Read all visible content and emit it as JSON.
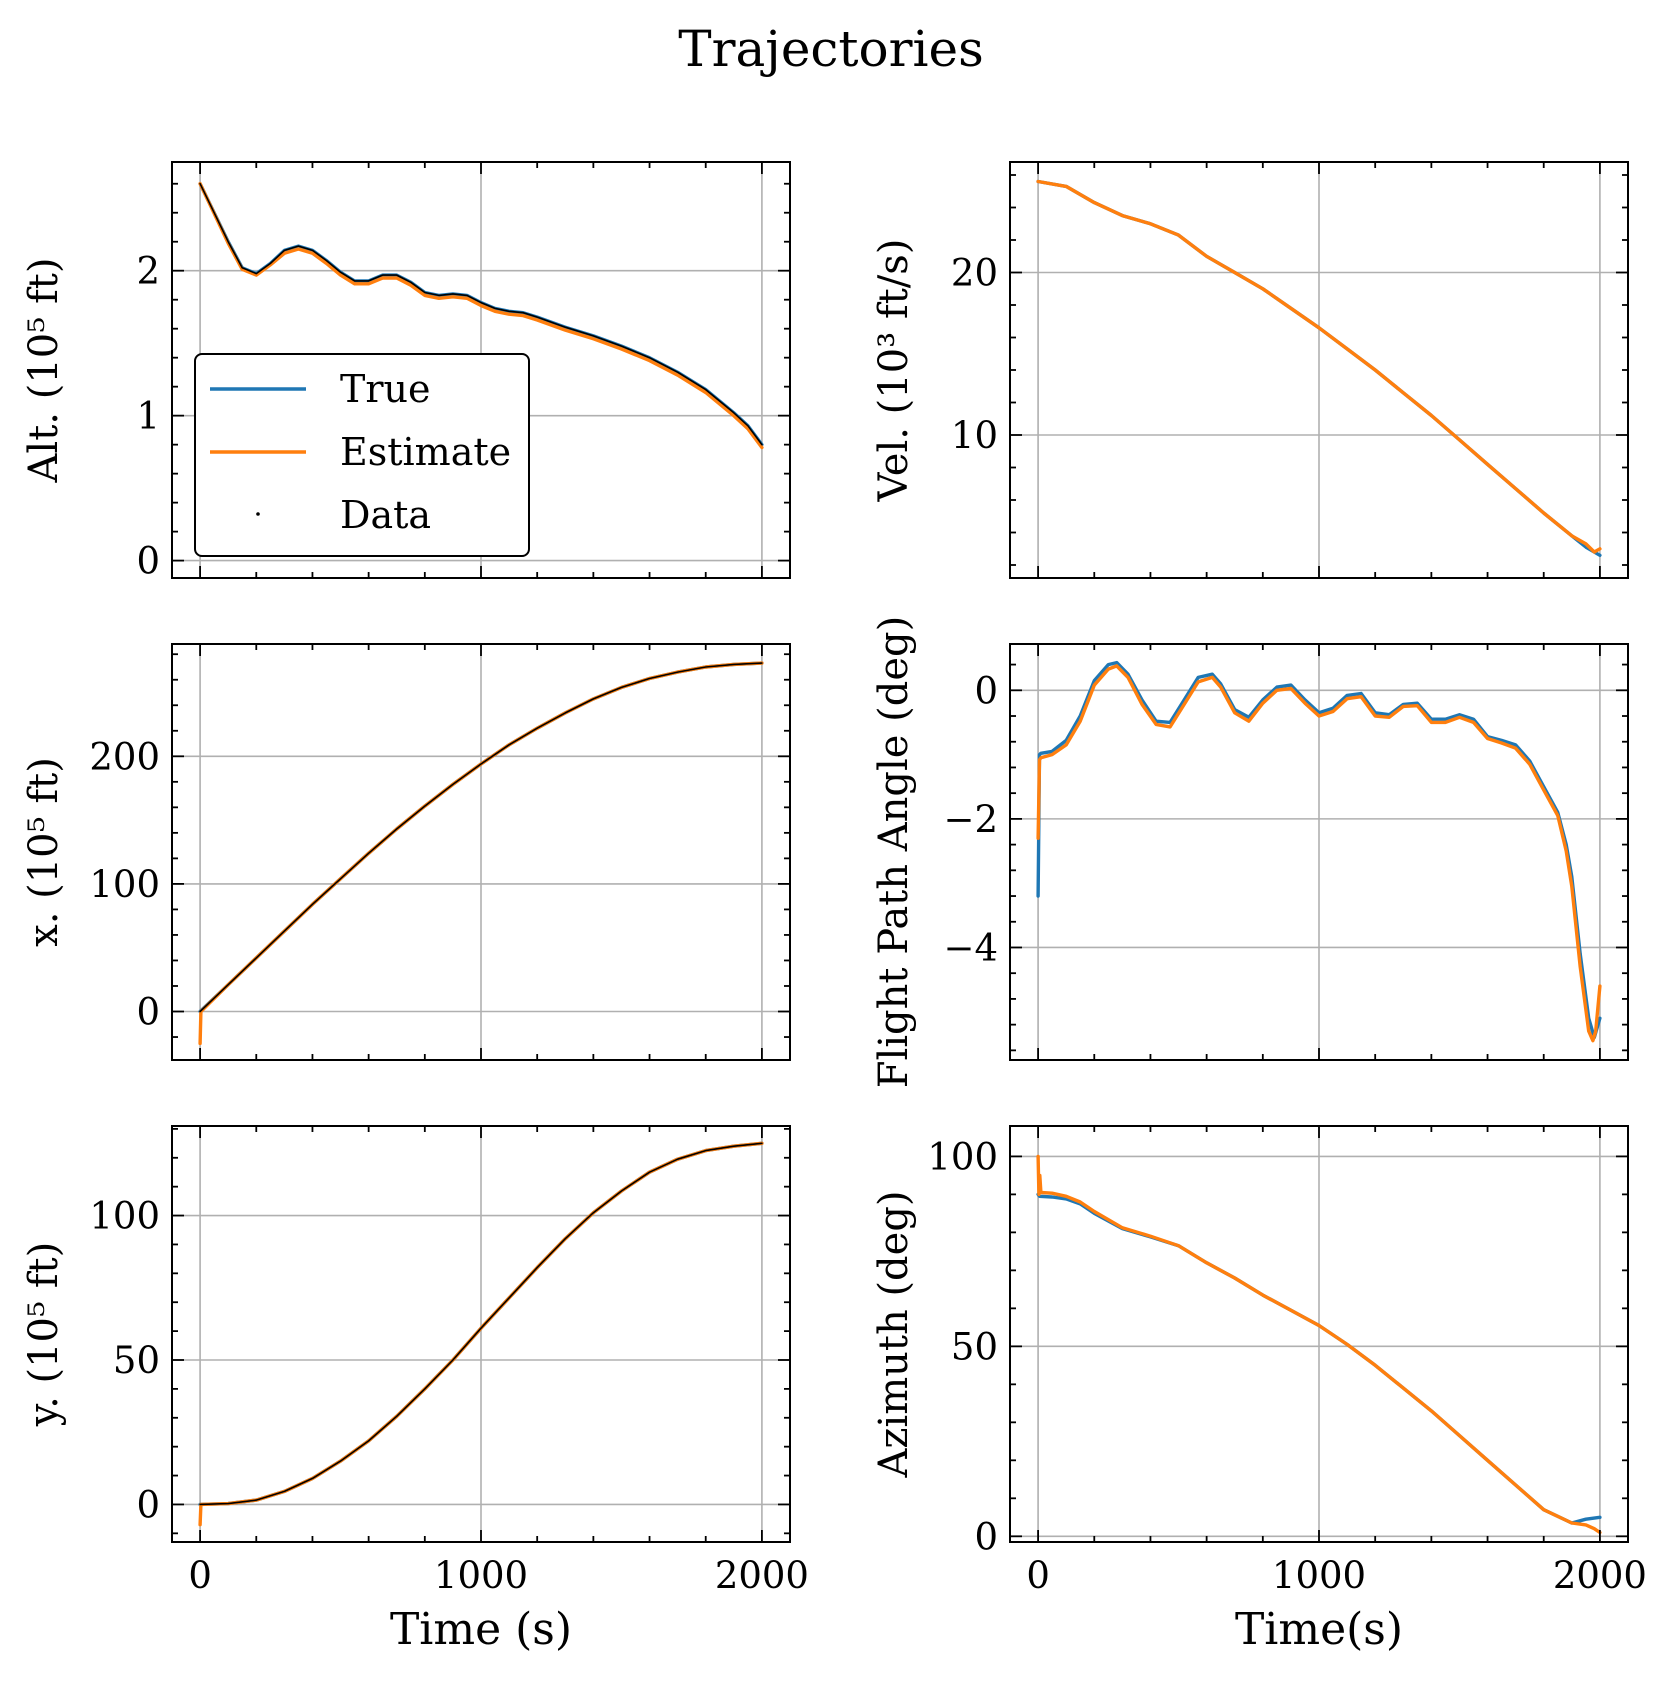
{
  "title": "Trajectories",
  "colors": {
    "true": "#1f77b4",
    "estimate": "#ff7f0e",
    "data": "#000000"
  },
  "legend": {
    "location": "lower-left",
    "entries": [
      "True",
      "Estimate",
      "Data"
    ]
  },
  "chart_data": [
    {
      "type": "line",
      "panel": "alt",
      "xlabel": "",
      "ylabel": "Alt. (10⁵ ft)",
      "xlim": [
        -100,
        2100
      ],
      "ylim": [
        -0.12,
        2.75
      ],
      "xticks": [
        0,
        1000,
        2000
      ],
      "xtick_labels": [
        "",
        "",
        ""
      ],
      "yticks": [
        0,
        1,
        2
      ],
      "ytick_labels": [
        "0",
        "1",
        "2"
      ],
      "grid": true,
      "series": [
        {
          "name": "True",
          "x": [
            0,
            100,
            150,
            200,
            250,
            300,
            350,
            400,
            450,
            500,
            550,
            600,
            650,
            700,
            750,
            800,
            850,
            900,
            950,
            1000,
            1050,
            1100,
            1150,
            1200,
            1300,
            1400,
            1500,
            1600,
            1700,
            1800,
            1900,
            1950,
            2000
          ],
          "y": [
            2.6,
            2.2,
            2.02,
            1.98,
            2.05,
            2.14,
            2.17,
            2.14,
            2.07,
            1.99,
            1.93,
            1.93,
            1.97,
            1.97,
            1.92,
            1.85,
            1.83,
            1.84,
            1.83,
            1.78,
            1.74,
            1.72,
            1.71,
            1.68,
            1.61,
            1.55,
            1.48,
            1.4,
            1.3,
            1.18,
            1.02,
            0.93,
            0.8
          ]
        },
        {
          "name": "Estimate",
          "x": [
            0,
            100,
            150,
            200,
            250,
            300,
            350,
            400,
            450,
            500,
            550,
            600,
            650,
            700,
            750,
            800,
            850,
            900,
            950,
            1000,
            1050,
            1100,
            1150,
            1200,
            1300,
            1400,
            1500,
            1600,
            1700,
            1800,
            1900,
            1950,
            2000
          ],
          "y": [
            2.6,
            2.19,
            2.01,
            1.97,
            2.04,
            2.12,
            2.15,
            2.12,
            2.05,
            1.97,
            1.91,
            1.91,
            1.95,
            1.95,
            1.9,
            1.83,
            1.81,
            1.82,
            1.81,
            1.76,
            1.72,
            1.7,
            1.69,
            1.66,
            1.59,
            1.53,
            1.46,
            1.38,
            1.28,
            1.16,
            1.0,
            0.91,
            0.78
          ]
        },
        {
          "name": "Data",
          "x": [
            0,
            100,
            150,
            200,
            250,
            300,
            350,
            400,
            450,
            500,
            550,
            600,
            650,
            700,
            750,
            800,
            850,
            900,
            950,
            1000,
            1050,
            1100,
            1150,
            1200,
            1300,
            1400,
            1500,
            1600,
            1700,
            1800,
            1900,
            1950,
            2000
          ],
          "y": [
            2.6,
            2.2,
            2.02,
            1.98,
            2.05,
            2.14,
            2.17,
            2.14,
            2.07,
            1.99,
            1.93,
            1.93,
            1.97,
            1.97,
            1.92,
            1.85,
            1.83,
            1.84,
            1.83,
            1.78,
            1.74,
            1.72,
            1.71,
            1.68,
            1.61,
            1.55,
            1.48,
            1.4,
            1.3,
            1.18,
            1.02,
            0.93,
            0.8
          ]
        }
      ]
    },
    {
      "type": "line",
      "panel": "vel",
      "xlabel": "",
      "ylabel": "Vel. (10³ ft/s)",
      "xlim": [
        -100,
        2100
      ],
      "ylim": [
        1.2,
        26.8
      ],
      "xticks": [
        0,
        1000,
        2000
      ],
      "xtick_labels": [
        "",
        "",
        ""
      ],
      "yticks": [
        10,
        20
      ],
      "ytick_labels": [
        "10",
        "20"
      ],
      "grid": true,
      "series": [
        {
          "name": "True",
          "x": [
            0,
            100,
            200,
            300,
            400,
            500,
            600,
            700,
            800,
            900,
            1000,
            1100,
            1200,
            1300,
            1400,
            1500,
            1600,
            1700,
            1800,
            1900,
            1950,
            2000
          ],
          "y": [
            25.6,
            25.3,
            24.3,
            23.5,
            23.0,
            22.3,
            21.0,
            20.0,
            19.0,
            17.8,
            16.6,
            15.3,
            14.0,
            12.6,
            11.2,
            9.7,
            8.2,
            6.7,
            5.2,
            3.8,
            3.1,
            2.6
          ]
        },
        {
          "name": "Estimate",
          "x": [
            0,
            100,
            200,
            300,
            400,
            500,
            600,
            700,
            800,
            900,
            1000,
            1100,
            1200,
            1300,
            1400,
            1500,
            1600,
            1700,
            1800,
            1900,
            1950,
            1980,
            2000
          ],
          "y": [
            25.6,
            25.3,
            24.3,
            23.5,
            23.0,
            22.3,
            21.0,
            20.0,
            19.0,
            17.8,
            16.6,
            15.3,
            14.0,
            12.6,
            11.2,
            9.7,
            8.2,
            6.7,
            5.2,
            3.8,
            3.3,
            2.8,
            3.0
          ]
        }
      ]
    },
    {
      "type": "line",
      "panel": "x",
      "xlabel": "",
      "ylabel": "x. (10⁵ ft)",
      "xlim": [
        -100,
        2100
      ],
      "ylim": [
        -38,
        288
      ],
      "xticks": [
        0,
        1000,
        2000
      ],
      "xtick_labels": [
        "",
        "",
        ""
      ],
      "yticks": [
        0,
        100,
        200
      ],
      "ytick_labels": [
        "0",
        "100",
        "200"
      ],
      "grid": true,
      "series": [
        {
          "name": "True",
          "x": [
            0,
            100,
            200,
            300,
            400,
            500,
            600,
            700,
            800,
            900,
            1000,
            1100,
            1200,
            1300,
            1400,
            1500,
            1600,
            1700,
            1800,
            1900,
            2000
          ],
          "y": [
            0,
            21,
            42,
            63,
            84,
            104,
            124,
            143,
            161,
            178,
            194,
            209,
            222,
            234,
            245,
            254,
            261,
            266,
            270,
            272,
            273
          ]
        },
        {
          "name": "Estimate",
          "x": [
            0,
            3,
            100,
            200,
            300,
            400,
            500,
            600,
            700,
            800,
            900,
            1000,
            1100,
            1200,
            1300,
            1400,
            1500,
            1600,
            1700,
            1800,
            1900,
            2000
          ],
          "y": [
            -25,
            0,
            21,
            42,
            63,
            84,
            104,
            124,
            143,
            161,
            178,
            194,
            209,
            222,
            234,
            245,
            254,
            261,
            266,
            270,
            272,
            273
          ]
        },
        {
          "name": "Data",
          "x": [
            0,
            100,
            200,
            300,
            400,
            500,
            600,
            700,
            800,
            900,
            1000,
            1100,
            1200,
            1300,
            1400,
            1500,
            1600,
            1700,
            1800,
            1900,
            2000
          ],
          "y": [
            0,
            21,
            42,
            63,
            84,
            104,
            124,
            143,
            161,
            178,
            194,
            209,
            222,
            234,
            245,
            254,
            261,
            266,
            270,
            272,
            273
          ]
        }
      ]
    },
    {
      "type": "line",
      "panel": "fpa",
      "xlabel": "",
      "ylabel": "Flight Path Angle (deg)",
      "xlim": [
        -100,
        2100
      ],
      "ylim": [
        -5.75,
        0.72
      ],
      "xticks": [
        0,
        1000,
        2000
      ],
      "xtick_labels": [
        "",
        "",
        ""
      ],
      "yticks": [
        -4,
        -2,
        0
      ],
      "ytick_labels": [
        "−4",
        "−2",
        "0"
      ],
      "grid": true,
      "series": [
        {
          "name": "True",
          "x": [
            0,
            5,
            10,
            50,
            100,
            150,
            200,
            250,
            280,
            320,
            370,
            420,
            470,
            520,
            570,
            620,
            650,
            700,
            750,
            800,
            850,
            900,
            950,
            1000,
            1050,
            1100,
            1150,
            1200,
            1250,
            1300,
            1350,
            1400,
            1450,
            1500,
            1550,
            1600,
            1650,
            1700,
            1750,
            1800,
            1850,
            1880,
            1900,
            1930,
            1960,
            1980,
            2000
          ],
          "y": [
            -3.2,
            -1.0,
            -0.98,
            -0.95,
            -0.78,
            -0.4,
            0.15,
            0.4,
            0.43,
            0.25,
            -0.15,
            -0.48,
            -0.5,
            -0.15,
            0.2,
            0.25,
            0.1,
            -0.3,
            -0.42,
            -0.15,
            0.05,
            0.08,
            -0.15,
            -0.35,
            -0.28,
            -0.08,
            -0.05,
            -0.35,
            -0.38,
            -0.22,
            -0.2,
            -0.45,
            -0.45,
            -0.38,
            -0.45,
            -0.72,
            -0.78,
            -0.85,
            -1.1,
            -1.5,
            -1.9,
            -2.4,
            -2.9,
            -4.1,
            -5.1,
            -5.4,
            -5.1
          ]
        },
        {
          "name": "Estimate",
          "x": [
            0,
            5,
            10,
            50,
            100,
            150,
            200,
            250,
            280,
            320,
            370,
            420,
            470,
            520,
            570,
            620,
            650,
            700,
            750,
            800,
            850,
            900,
            950,
            1000,
            1050,
            1100,
            1150,
            1200,
            1250,
            1300,
            1350,
            1400,
            1450,
            1500,
            1550,
            1600,
            1650,
            1700,
            1750,
            1800,
            1850,
            1880,
            1900,
            1930,
            1960,
            1975,
            1985,
            2000
          ],
          "y": [
            -2.3,
            -1.08,
            -1.05,
            -1.0,
            -0.85,
            -0.48,
            0.08,
            0.33,
            0.38,
            0.2,
            -0.22,
            -0.53,
            -0.57,
            -0.22,
            0.13,
            0.2,
            0.05,
            -0.35,
            -0.48,
            -0.2,
            0.0,
            0.03,
            -0.2,
            -0.4,
            -0.33,
            -0.13,
            -0.1,
            -0.4,
            -0.42,
            -0.25,
            -0.24,
            -0.5,
            -0.5,
            -0.42,
            -0.5,
            -0.75,
            -0.82,
            -0.9,
            -1.15,
            -1.55,
            -1.95,
            -2.5,
            -3.05,
            -4.3,
            -5.3,
            -5.45,
            -5.3,
            -4.6
          ]
        }
      ]
    },
    {
      "type": "line",
      "panel": "y",
      "xlabel": "Time (s)",
      "ylabel": "y. (10⁵ ft)",
      "xlim": [
        -100,
        2100
      ],
      "ylim": [
        -13,
        131
      ],
      "xticks": [
        0,
        1000,
        2000
      ],
      "xtick_labels": [
        "0",
        "1000",
        "2000"
      ],
      "yticks": [
        0,
        50,
        100
      ],
      "ytick_labels": [
        "0",
        "50",
        "100"
      ],
      "grid": true,
      "series": [
        {
          "name": "True",
          "x": [
            0,
            100,
            200,
            300,
            400,
            500,
            600,
            700,
            800,
            900,
            1000,
            1100,
            1200,
            1300,
            1400,
            1500,
            1600,
            1700,
            1800,
            1900,
            2000
          ],
          "y": [
            0,
            0.3,
            1.5,
            4.5,
            9,
            15,
            22,
            30.5,
            40,
            50,
            61,
            71.5,
            82,
            92,
            101,
            108.5,
            115,
            119.5,
            122.5,
            124,
            125
          ]
        },
        {
          "name": "Estimate",
          "x": [
            0,
            3,
            100,
            200,
            300,
            400,
            500,
            600,
            700,
            800,
            900,
            1000,
            1100,
            1200,
            1300,
            1400,
            1500,
            1600,
            1700,
            1800,
            1900,
            2000
          ],
          "y": [
            -7,
            0,
            0.3,
            1.5,
            4.5,
            9,
            15,
            22,
            30.5,
            40,
            50,
            61,
            71.5,
            82,
            92,
            101,
            108.5,
            115,
            119.5,
            122.5,
            124,
            125
          ]
        },
        {
          "name": "Data",
          "x": [
            0,
            100,
            200,
            300,
            400,
            500,
            600,
            700,
            800,
            900,
            1000,
            1100,
            1200,
            1300,
            1400,
            1500,
            1600,
            1700,
            1800,
            1900,
            2000
          ],
          "y": [
            0,
            0.3,
            1.5,
            4.5,
            9,
            15,
            22,
            30.5,
            40,
            50,
            61,
            71.5,
            82,
            92,
            101,
            108.5,
            115,
            119.5,
            122.5,
            124,
            125
          ]
        }
      ]
    },
    {
      "type": "line",
      "panel": "azimuth",
      "xlabel": "Time(s)",
      "ylabel": "Azimuth (deg)",
      "xlim": [
        -100,
        2100
      ],
      "ylim": [
        -1.5,
        108
      ],
      "xticks": [
        0,
        1000,
        2000
      ],
      "xtick_labels": [
        "0",
        "1000",
        "2000"
      ],
      "yticks": [
        0,
        50,
        100
      ],
      "ytick_labels": [
        "0",
        "50",
        "100"
      ],
      "grid": true,
      "series": [
        {
          "name": "True",
          "x": [
            0,
            5,
            50,
            100,
            150,
            200,
            300,
            400,
            500,
            600,
            700,
            800,
            900,
            1000,
            1100,
            1200,
            1300,
            1400,
            1500,
            1600,
            1700,
            1800,
            1900,
            1950,
            2000
          ],
          "y": [
            90,
            89.5,
            89.3,
            88.8,
            87.5,
            85,
            81,
            78.8,
            76.5,
            72,
            68,
            63.5,
            59.5,
            55.5,
            50.5,
            45,
            39,
            33,
            26.5,
            20,
            13.5,
            7,
            3.5,
            4.5,
            5
          ]
        },
        {
          "name": "Estimate",
          "x": [
            0,
            3,
            6,
            10,
            50,
            100,
            150,
            200,
            300,
            400,
            500,
            600,
            700,
            800,
            900,
            1000,
            1100,
            1200,
            1300,
            1400,
            1500,
            1600,
            1700,
            1800,
            1900,
            1950,
            1980,
            2000
          ],
          "y": [
            100,
            90,
            95,
            90.5,
            90.3,
            89.5,
            88,
            85.5,
            81.2,
            79,
            76.5,
            72,
            68,
            63.5,
            59.5,
            55.5,
            50.5,
            45,
            39,
            33,
            26.5,
            20,
            13.5,
            7,
            3.5,
            3.0,
            2.0,
            1.0
          ]
        }
      ]
    }
  ]
}
